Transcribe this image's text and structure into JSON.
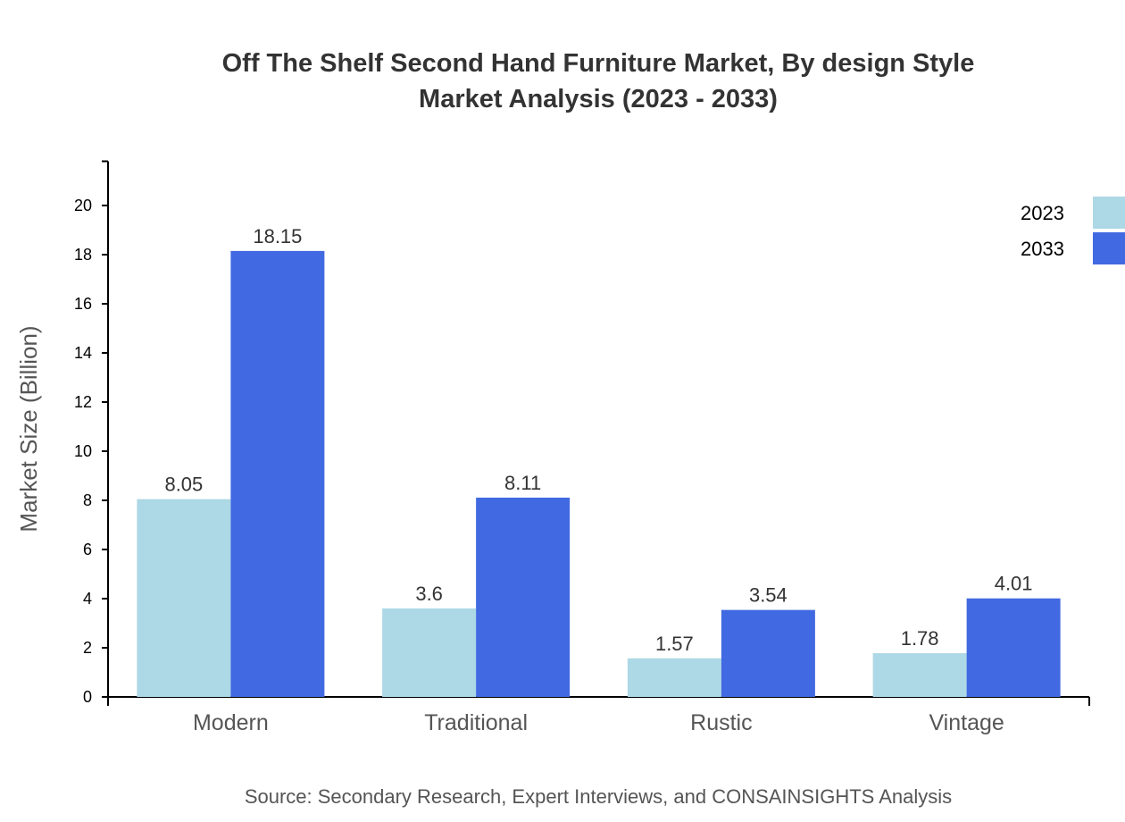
{
  "chart_data": {
    "type": "bar",
    "title": "Off The Shelf Second Hand Furniture Market, By design Style",
    "subtitle": "Market Analysis (2023 - 2033)",
    "xlabel": "",
    "ylabel": "Market Size (Billion)",
    "categories": [
      "Modern",
      "Traditional",
      "Rustic",
      "Vintage"
    ],
    "series": [
      {
        "name": "2023",
        "color": "#add8e6",
        "values": [
          8.05,
          3.6,
          1.57,
          1.78
        ],
        "labels": [
          "8.05",
          "3.6",
          "1.57",
          "1.78"
        ]
      },
      {
        "name": "2033",
        "color": "#4169e1",
        "values": [
          18.15,
          8.11,
          3.54,
          4.01
        ],
        "labels": [
          "18.15",
          "8.11",
          "3.54",
          "4.01"
        ]
      }
    ],
    "ylim": [
      0,
      21.8
    ],
    "yticks": [
      "0",
      "2",
      "4",
      "6",
      "8",
      "10",
      "12",
      "14",
      "16",
      "18",
      "20"
    ],
    "grid": false,
    "legend": "top-right",
    "source": "Source: Secondary Research, Expert Interviews, and CONSAINSIGHTS Analysis"
  }
}
